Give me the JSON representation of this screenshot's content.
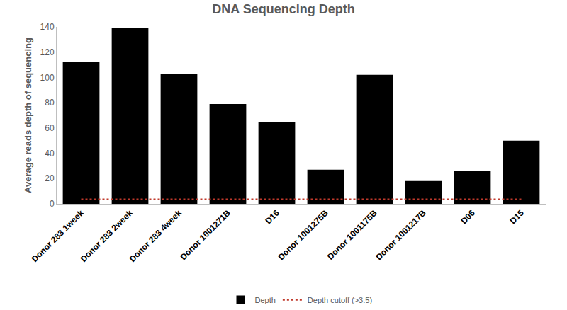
{
  "chart_data": {
    "type": "bar",
    "title": "DNA Sequencing Depth",
    "y_label": "Average reads depth of sequencing",
    "categories": [
      "Donor 283 1week",
      "Donor 283 2week",
      "Donor 283 4week",
      "Donor 1001271B",
      "D16",
      "Donor 1001275B",
      "Donor 1001175B",
      "Donor 1001217B",
      "D06",
      "D15"
    ],
    "series": [
      {
        "name": "Depth",
        "type": "bar",
        "color": "#000000",
        "values": [
          112,
          139,
          103,
          79,
          65,
          27,
          102,
          18,
          26,
          50
        ]
      },
      {
        "name": "Depth cutoff (>3.5)",
        "type": "line",
        "color": "#c0392b",
        "line_style": "dotted",
        "values": [
          3.5,
          3.5,
          3.5,
          3.5,
          3.5,
          3.5,
          3.5,
          3.5,
          3.5,
          3.5
        ]
      }
    ],
    "ylim": [
      0,
      140
    ],
    "yticks": [
      0,
      20,
      40,
      60,
      80,
      100,
      120,
      140
    ],
    "grid": false,
    "legend": "bottom"
  }
}
